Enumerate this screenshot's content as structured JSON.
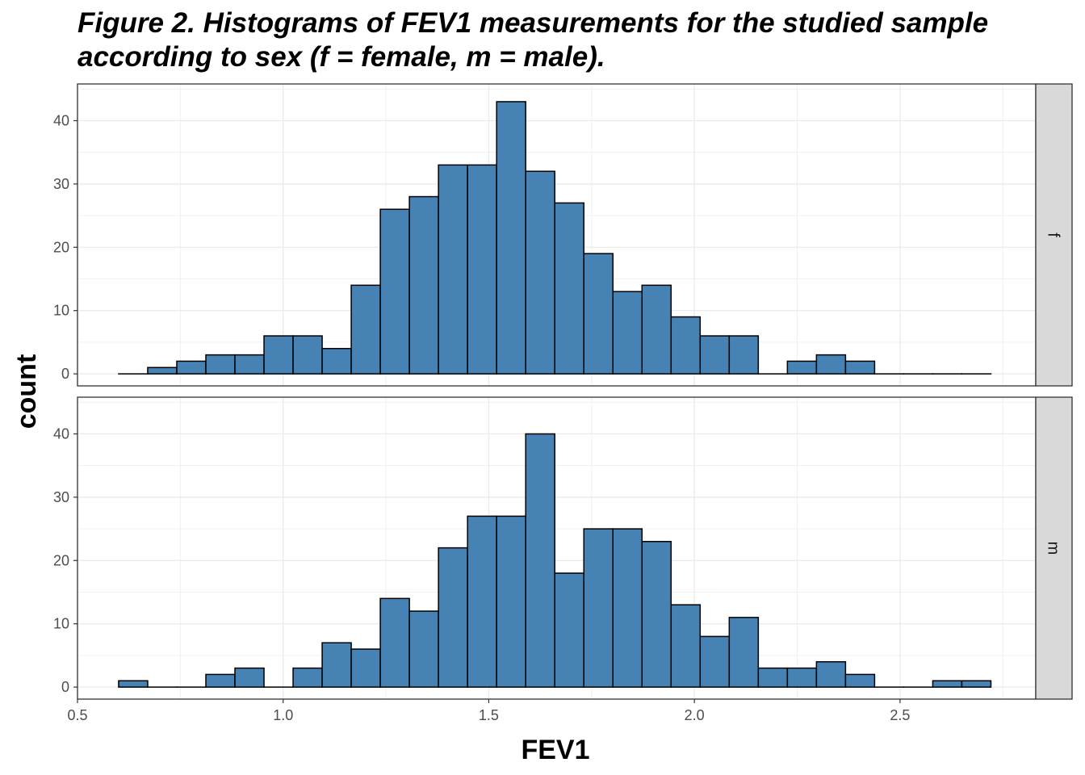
{
  "chart_data": {
    "type": "bar",
    "title": "Figure 2. Histograms of FEV1 measurements for the studied sample according to sex (f = female, m = male).",
    "xlabel": "FEV1",
    "ylabel": "count",
    "xlim": [
      0.5,
      2.83
    ],
    "ylim": [
      0,
      45
    ],
    "x_ticks": [
      0.5,
      1.0,
      1.5,
      2.0,
      2.5
    ],
    "y_ticks": [
      0,
      10,
      20,
      30,
      40
    ],
    "grid": true,
    "bar_color": "#4682B4",
    "bar_edge_color": "#000000",
    "strip_color": "#D9D9D9",
    "bin_start": 0.6,
    "bin_width": 0.0707,
    "facets": [
      {
        "name": "f",
        "counts": [
          0,
          1,
          2,
          3,
          3,
          6,
          6,
          4,
          14,
          26,
          28,
          33,
          33,
          43,
          32,
          27,
          19,
          13,
          14,
          9,
          6,
          6,
          0,
          2,
          3,
          2,
          0,
          0,
          0,
          0
        ]
      },
      {
        "name": "m",
        "counts": [
          1,
          0,
          0,
          2,
          3,
          0,
          3,
          7,
          6,
          14,
          12,
          22,
          27,
          27,
          40,
          18,
          25,
          25,
          23,
          13,
          8,
          11,
          3,
          3,
          4,
          2,
          0,
          0,
          1,
          1
        ]
      }
    ]
  }
}
